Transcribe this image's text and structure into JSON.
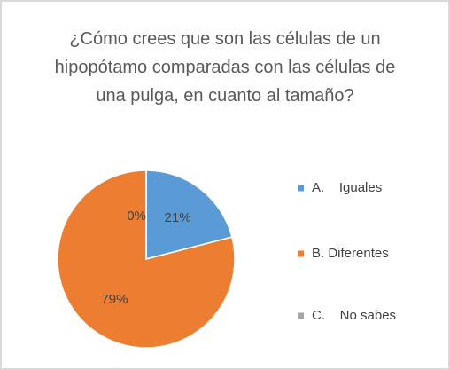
{
  "chart_data": {
    "type": "pie",
    "title": "¿Cómo crees que son las células de un hipopótamo comparadas con las células de una pulga, en cuanto al tamaño?",
    "categories": [
      "A.    Iguales",
      "B. Diferentes",
      "C.    No sabes"
    ],
    "values": [
      21,
      79,
      0
    ],
    "value_labels": [
      "21%",
      "79%",
      "0%"
    ],
    "colors": [
      "#5b9bd5",
      "#ed7d31",
      "#a5a5a5"
    ],
    "legend": "right"
  }
}
